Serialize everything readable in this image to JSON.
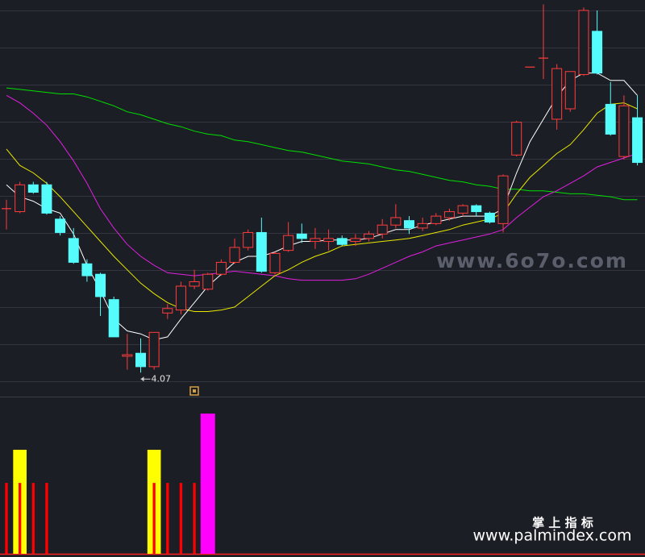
{
  "chart_data": [
    {
      "type": "candlestick",
      "up_color": "#ff3c3c",
      "down_color": "#54fcfc",
      "ylim": [
        3.92,
        6.57
      ],
      "open": [
        5.17,
        5.15,
        5.33,
        5.33,
        5.1,
        4.97,
        4.8,
        4.73,
        4.56,
        4.18,
        4.2,
        4.11,
        4.47,
        4.49,
        4.65,
        4.63,
        4.73,
        4.81,
        4.91,
        5.01,
        4.74,
        4.89,
        5.0,
        4.95,
        4.95,
        4.97,
        4.95,
        4.97,
        5.0,
        5.06,
        5.09,
        5.04,
        5.07,
        5.11,
        5.14,
        5.19,
        5.14,
        5.07,
        5.53,
        6.12,
        6.18,
        5.77,
        5.84,
        6.07,
        6.36,
        5.87,
        5.52,
        5.78
      ],
      "high": [
        5.23,
        5.35,
        5.35,
        5.35,
        5.12,
        5.04,
        4.83,
        4.74,
        4.58,
        4.33,
        4.3,
        4.34,
        4.53,
        4.68,
        4.76,
        4.74,
        4.83,
        4.97,
        5.03,
        5.11,
        4.88,
        5.08,
        5.07,
        5.04,
        5.03,
        4.99,
        5.0,
        5.02,
        5.1,
        5.2,
        5.12,
        5.11,
        5.14,
        5.17,
        5.2,
        5.2,
        5.15,
        5.4,
        5.76,
        6.12,
        6.54,
        6.14,
        6.09,
        6.52,
        6.5,
        6.02,
        5.93,
        5.93
      ],
      "low": [
        5.03,
        5.14,
        5.27,
        5.13,
        4.99,
        4.8,
        4.68,
        4.45,
        4.31,
        4.09,
        4.07,
        4.09,
        4.43,
        4.46,
        4.63,
        4.62,
        4.72,
        4.8,
        4.89,
        4.74,
        4.73,
        4.88,
        4.94,
        4.9,
        4.89,
        4.92,
        4.92,
        4.95,
        4.97,
        5.04,
        5.0,
        5.02,
        5.06,
        5.09,
        5.12,
        5.12,
        5.07,
        5.01,
        5.52,
        6.12,
        6.04,
        5.7,
        5.82,
        6.06,
        6.07,
        5.66,
        5.5,
        5.46
      ],
      "close": [
        5.17,
        5.33,
        5.28,
        5.14,
        5.01,
        4.81,
        4.72,
        4.58,
        4.31,
        4.19,
        4.11,
        4.34,
        4.5,
        4.65,
        4.68,
        4.73,
        4.81,
        4.91,
        5.01,
        4.75,
        4.87,
        4.99,
        4.97,
        4.97,
        4.97,
        4.93,
        4.97,
        5.0,
        5.06,
        5.11,
        5.04,
        5.07,
        5.12,
        5.15,
        5.19,
        5.15,
        5.08,
        5.39,
        5.75,
        6.12,
        6.18,
        6.11,
        6.09,
        6.5,
        6.08,
        5.67,
        5.86,
        5.48
      ],
      "lines": [
        {
          "color": "#00e000",
          "values": [
            5.98,
            5.97,
            5.96,
            5.95,
            5.94,
            5.94,
            5.92,
            5.89,
            5.86,
            5.82,
            5.8,
            5.77,
            5.74,
            5.72,
            5.69,
            5.67,
            5.66,
            5.63,
            5.62,
            5.6,
            5.58,
            5.56,
            5.55,
            5.53,
            5.51,
            5.49,
            5.48,
            5.47,
            5.45,
            5.43,
            5.42,
            5.4,
            5.38,
            5.36,
            5.35,
            5.33,
            5.32,
            5.3,
            5.3,
            5.29,
            5.29,
            5.28,
            5.27,
            5.27,
            5.26,
            5.25,
            5.23,
            5.23
          ]
        },
        {
          "color": "#e020e0",
          "values": [
            5.93,
            5.88,
            5.81,
            5.73,
            5.62,
            5.49,
            5.34,
            5.17,
            5.04,
            4.93,
            4.85,
            4.79,
            4.74,
            4.73,
            4.72,
            4.73,
            4.74,
            4.75,
            4.74,
            4.73,
            4.72,
            4.7,
            4.69,
            4.69,
            4.69,
            4.69,
            4.7,
            4.73,
            4.77,
            4.81,
            4.85,
            4.88,
            4.92,
            4.94,
            4.96,
            4.98,
            5.0,
            5.03,
            5.11,
            5.18,
            5.25,
            5.29,
            5.34,
            5.39,
            5.45,
            5.48,
            5.51,
            5.54
          ]
        },
        {
          "color": "#e8e800",
          "values": [
            5.57,
            5.46,
            5.41,
            5.34,
            5.25,
            5.15,
            5.05,
            4.95,
            4.85,
            4.76,
            4.67,
            4.6,
            4.54,
            4.5,
            4.48,
            4.48,
            4.49,
            4.51,
            4.58,
            4.65,
            4.72,
            4.76,
            4.81,
            4.85,
            4.88,
            4.92,
            4.93,
            4.94,
            4.95,
            4.96,
            4.97,
            4.99,
            5.01,
            5.03,
            5.06,
            5.08,
            5.1,
            5.14,
            5.27,
            5.38,
            5.46,
            5.54,
            5.6,
            5.7,
            5.81,
            5.87,
            5.88,
            5.84
          ]
        },
        {
          "color": "#ffffff",
          "values": [
            5.33,
            5.25,
            5.22,
            5.17,
            5.14,
            5.0,
            4.79,
            4.62,
            4.43,
            4.35,
            4.33,
            4.29,
            4.31,
            4.43,
            4.54,
            4.65,
            4.73,
            4.81,
            4.85,
            4.85,
            4.88,
            4.92,
            4.95,
            4.95,
            4.96,
            4.96,
            4.96,
            4.97,
            5.0,
            5.03,
            5.03,
            5.06,
            5.08,
            5.1,
            5.12,
            5.12,
            5.12,
            5.17,
            5.41,
            5.62,
            5.77,
            5.92,
            6.03,
            6.08,
            6.08,
            6.03,
            6.03,
            5.93
          ]
        }
      ]
    },
    {
      "type": "bar",
      "ylim": [
        0,
        100
      ],
      "series": [
        {
          "color": "#ffff00",
          "values": [
            null,
            69,
            null,
            null,
            null,
            null,
            null,
            null,
            null,
            null,
            null,
            69,
            null,
            null,
            null,
            null,
            null,
            null,
            null,
            null,
            null,
            null,
            null,
            null,
            null,
            null,
            null,
            null,
            null,
            null,
            null,
            null,
            null,
            null,
            null,
            null,
            null,
            null,
            null,
            null,
            null,
            null,
            null,
            null,
            null,
            null,
            null,
            null
          ]
        },
        {
          "color": "#ff0000",
          "values": [
            47,
            47,
            47,
            47,
            null,
            null,
            null,
            null,
            null,
            null,
            null,
            47,
            47,
            47,
            47,
            null,
            null,
            null,
            null,
            null,
            null,
            null,
            null,
            null,
            null,
            null,
            null,
            null,
            null,
            null,
            null,
            null,
            null,
            null,
            null,
            null,
            null,
            null,
            null,
            null,
            null,
            null,
            null,
            null,
            null,
            null,
            null,
            null
          ]
        },
        {
          "color": "#ff00ff",
          "values": [
            null,
            null,
            null,
            null,
            null,
            null,
            null,
            null,
            null,
            null,
            null,
            null,
            null,
            null,
            null,
            93,
            null,
            null,
            null,
            null,
            null,
            null,
            null,
            null,
            null,
            null,
            null,
            null,
            null,
            null,
            null,
            null,
            null,
            null,
            null,
            null,
            null,
            null,
            null,
            null,
            null,
            null,
            null,
            null,
            null,
            null,
            null,
            null
          ]
        }
      ]
    }
  ],
  "watermarks": {
    "site": "www.6o7o.com",
    "brand": "掌 上 指 标",
    "url": "www.palmindex.com"
  }
}
